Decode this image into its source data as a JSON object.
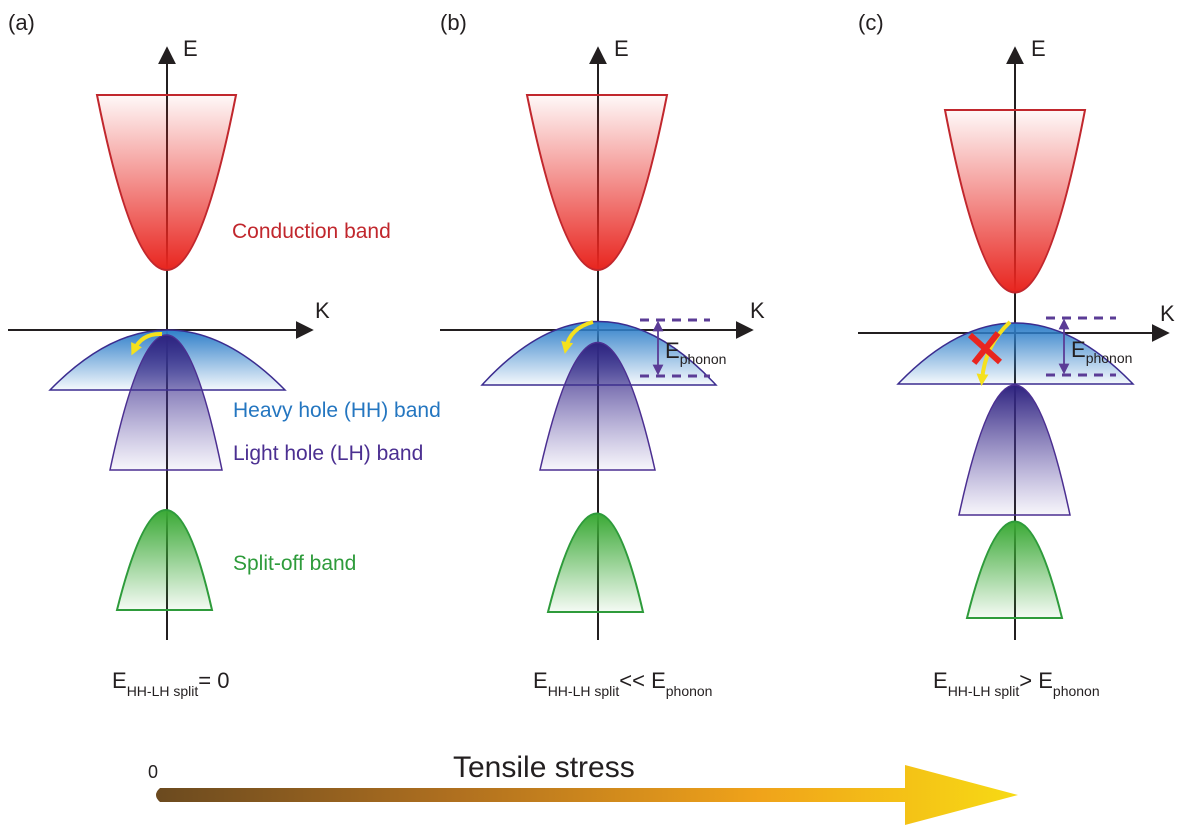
{
  "colors": {
    "conduction": "#e8251f",
    "heavy_hole": "#2f7fc9",
    "light_hole": "#3b2c8f",
    "split_off": "#3aa935",
    "arrow_yellow": "#f5e11d",
    "cross_red": "#e8251f",
    "axis": "#231f20",
    "label_conduction": "#c1272d",
    "label_heavy_hole": "#2476c0",
    "label_light_hole": "#4b2f91",
    "label_split_off": "#2e9b3b",
    "phonon_marker": "#5b3c96"
  },
  "panels": [
    {
      "id": "a",
      "tag": "(a)",
      "energy_axis": "E",
      "momentum_axis": "K",
      "condition_main": "E",
      "condition_sub": "HH-LH split",
      "condition_rel": "= 0",
      "condition_main2": "",
      "condition_sub2": ""
    },
    {
      "id": "b",
      "tag": "(b)",
      "energy_axis": "E",
      "momentum_axis": "K",
      "phonon_main": "E",
      "phonon_sub": "phonon",
      "condition_main": "E",
      "condition_sub": "HH-LH split",
      "condition_rel": "<< E",
      "condition_sub2": "phonon"
    },
    {
      "id": "c",
      "tag": "(c)",
      "energy_axis": "E",
      "momentum_axis": "K",
      "phonon_main": "E",
      "phonon_sub": "phonon",
      "condition_main": "E",
      "condition_sub": "HH-LH split",
      "condition_rel": "> E",
      "condition_sub2": "phonon"
    }
  ],
  "band_labels": {
    "conduction": "Conduction band",
    "heavy_hole": "Heavy hole (HH) band",
    "light_hole": "Light hole (LH) band",
    "split_off": "Split-off band"
  },
  "stress": {
    "label": "Tensile stress",
    "start": "0"
  }
}
